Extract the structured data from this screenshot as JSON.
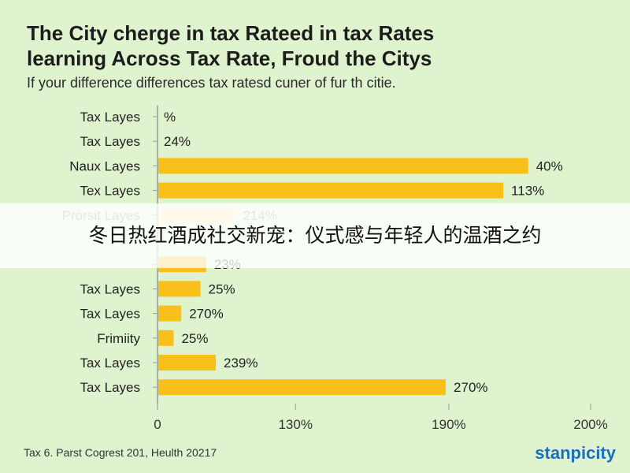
{
  "title_lines": [
    "The City cherge in tax Rateed in tax Rates",
    "learning Across Tax Rate, Froud the Citys"
  ],
  "subtitle": "If your difference differences tax ratesd cuner of fur th citie.",
  "overlay_caption": "冬日热红酒成社交新宠：仪式感与年轻人的温酒之约",
  "footer_note": "Tax 6. Parst Cogrest 201, Heulth 20217",
  "brand": "stanpicity",
  "colors": {
    "bar": "#f9bf1b",
    "bar_faded": "#fde7a8",
    "axis": "#9a9a9a"
  },
  "chart_data": {
    "type": "bar",
    "orientation": "horizontal",
    "categories": [
      "Tax Layes",
      "Tax Layes",
      "Naux Layes",
      "Tex Layes",
      "Prorsit Layes",
      "",
      "",
      "Tax Layes",
      "Tax Layes",
      "Frimiity",
      "Tax Layes",
      "Tax Layes"
    ],
    "values": [
      0,
      0,
      193,
      180,
      40,
      null,
      25,
      22,
      12,
      8,
      30,
      150
    ],
    "data_labels": [
      "%",
      "24%",
      "40%",
      "113%",
      "214%",
      "",
      "23%",
      "25%",
      "270%",
      "25%",
      "239%",
      "270%"
    ],
    "x_ticks": [
      "0",
      "130%",
      "190%",
      "200%"
    ],
    "x_tick_positions": [
      0,
      72,
      152,
      226
    ],
    "xlim": [
      0,
      226
    ],
    "grid": false
  }
}
